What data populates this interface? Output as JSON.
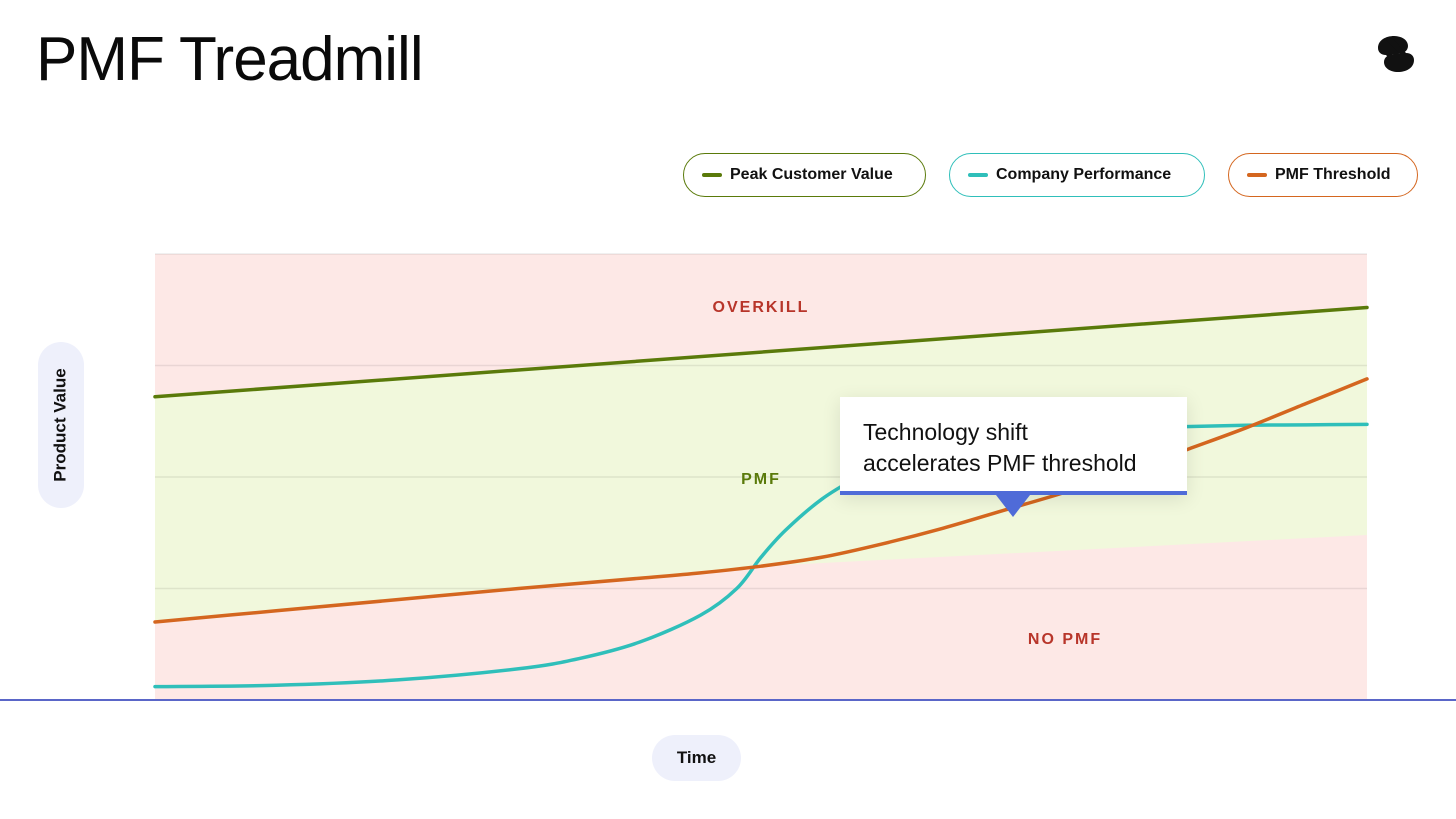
{
  "title": "PMF Treadmill",
  "logo_icon": "brand-logo-icon",
  "legend": [
    {
      "label": "Peak Customer Value",
      "color": "#5a7a0a"
    },
    {
      "label": "Company Performance",
      "color": "#2fbfba"
    },
    {
      "label": "PMF Threshold",
      "color": "#d4661f"
    }
  ],
  "axes": {
    "x_label": "Time",
    "y_label": "Product Value"
  },
  "regions": {
    "overkill": {
      "label": "OVERKILL",
      "color": "#b8352a"
    },
    "pmf": {
      "label": "PMF",
      "color": "#5a7a0a"
    },
    "no_pmf": {
      "label": "NO PMF",
      "color": "#b8352a"
    }
  },
  "callout": {
    "line1": "Technology shift",
    "line2": "accelerates PMF threshold"
  },
  "chart_data": {
    "type": "line",
    "xlabel": "Time",
    "ylabel": "Product Value",
    "xlim": [
      0,
      100
    ],
    "ylim": [
      0,
      100
    ],
    "grid": true,
    "legend_position": "top-right",
    "series": [
      {
        "name": "Peak Customer Value",
        "color": "#5a7a0a",
        "x": [
          0,
          100
        ],
        "y": [
          68,
          88
        ]
      },
      {
        "name": "Company Performance",
        "color": "#2fbfba",
        "x": [
          0,
          10,
          20,
          30,
          35,
          40,
          45,
          48,
          50,
          52,
          55,
          58,
          60,
          65,
          70,
          75,
          80,
          85,
          90,
          95,
          100
        ],
        "y": [
          3,
          3.3,
          4.5,
          7,
          9.3,
          13,
          19,
          25,
          32,
          38,
          45,
          50,
          52.5,
          56,
          58.5,
          60,
          60.8,
          61.3,
          61.6,
          61.7,
          61.8
        ]
      },
      {
        "name": "PMF Threshold",
        "color": "#d4661f",
        "x": [
          0,
          10,
          20,
          30,
          40,
          45,
          50,
          55,
          60,
          65,
          70,
          75,
          80,
          85,
          90,
          95,
          100
        ],
        "y": [
          17.5,
          20,
          22.5,
          25,
          27.3,
          28.5,
          30,
          32,
          35,
          38.5,
          42.5,
          46.5,
          51,
          56,
          61,
          66.5,
          72
        ]
      }
    ],
    "region_boundary": {
      "name": "NO PMF upper bound",
      "x": [
        0,
        50,
        100
      ],
      "y": [
        17.5,
        30,
        37
      ]
    }
  }
}
